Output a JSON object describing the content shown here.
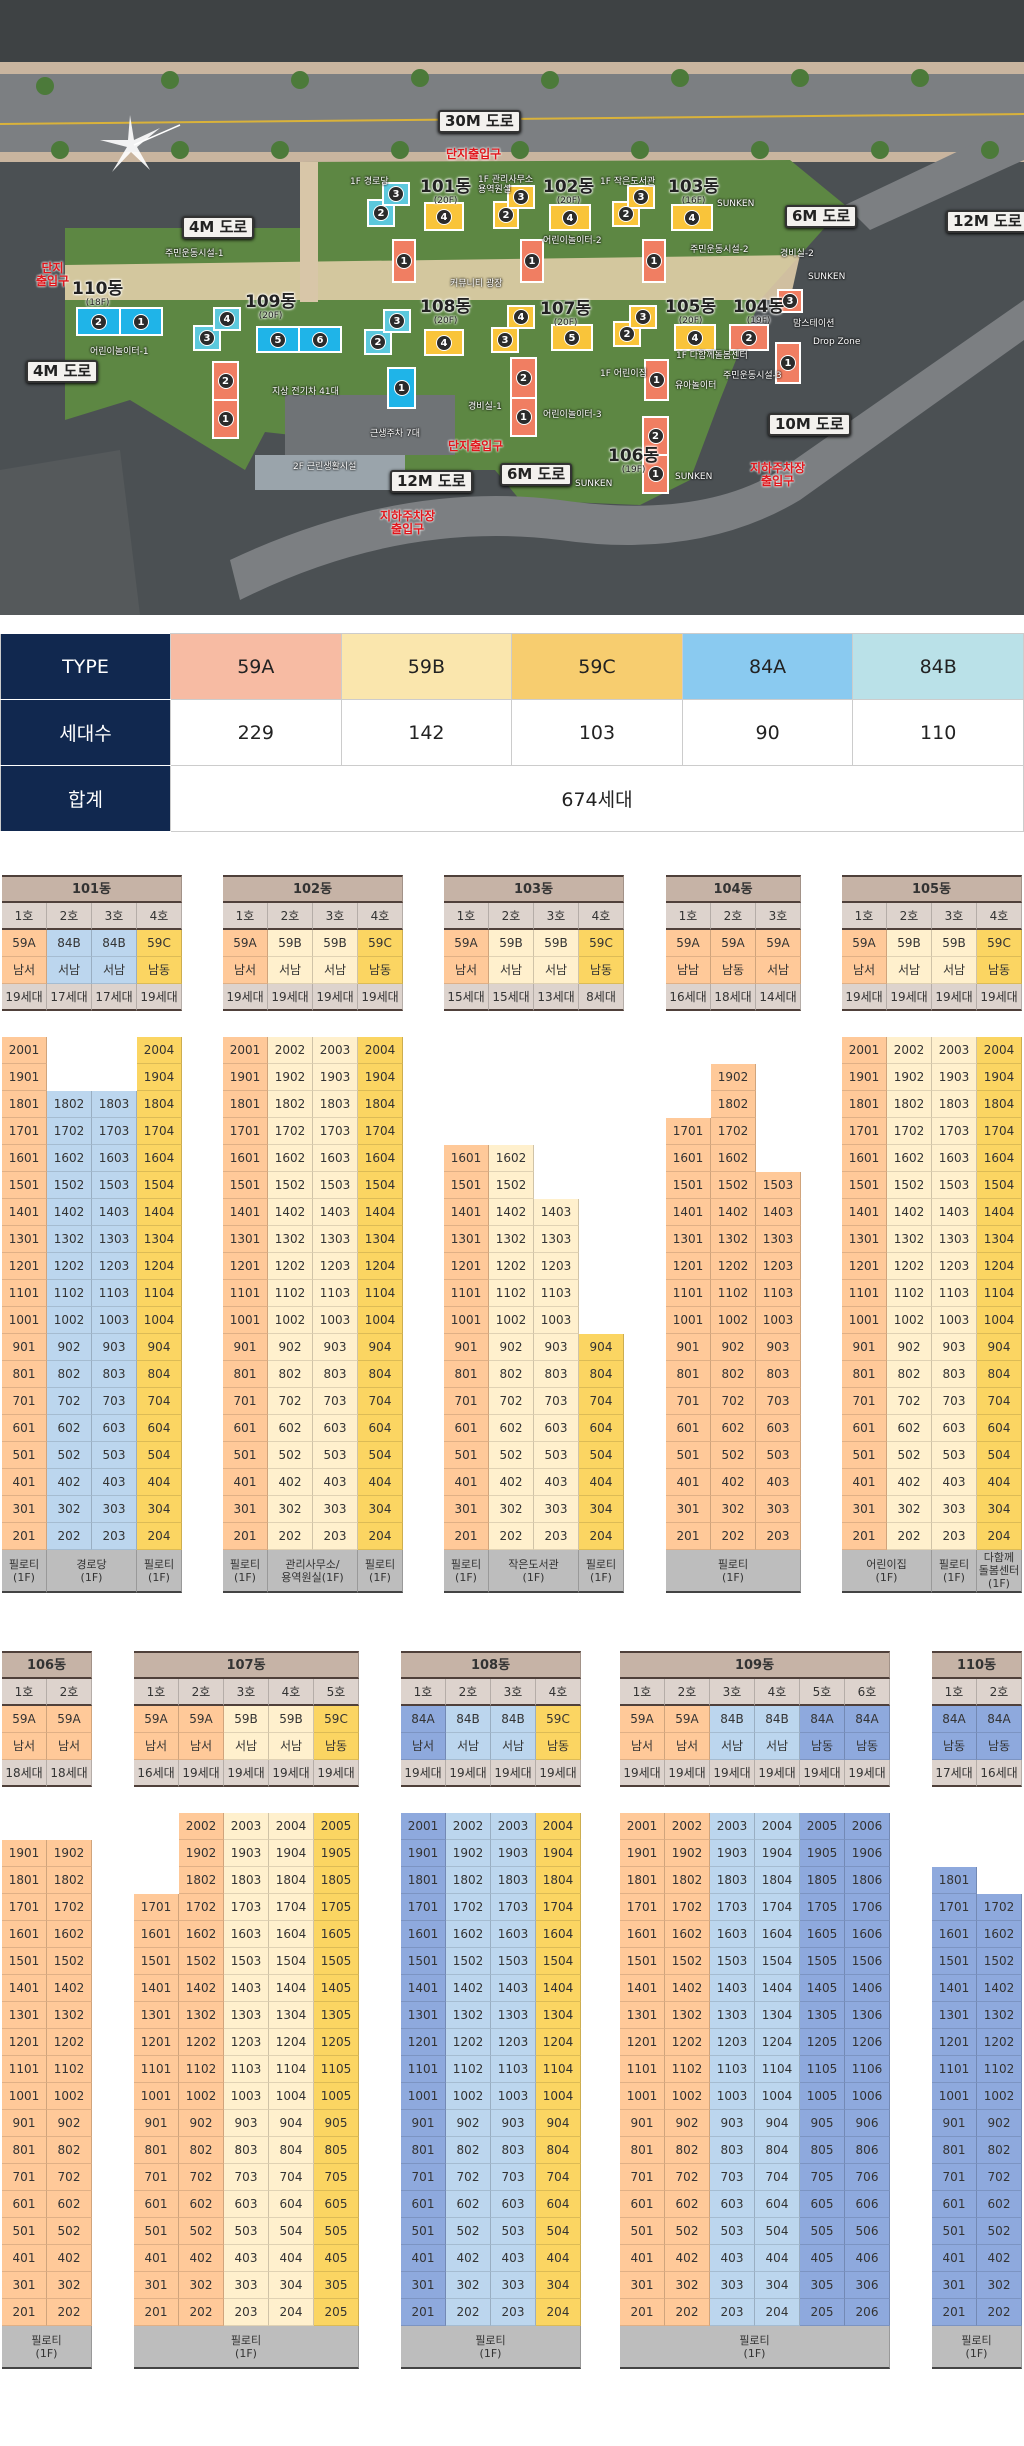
{
  "colors": {
    "59A": "#ffc999",
    "59B": "#fff0cd",
    "59C": "#fbd562",
    "84A": "#8ea9dd",
    "84B": "#bcd6ee",
    "navy": "#11284f"
  },
  "map_colors": {
    "59A": "#f07e62",
    "59B": "#f9c43a",
    "59C": "#f9c43a",
    "84A": "#1fb4e8",
    "84B": "#5cc8dc"
  },
  "map": {
    "roads": [
      "30M 도로",
      "4M 도로",
      "6M 도로",
      "12M 도로",
      "4M 도로",
      "10M 도로",
      "12M 도로",
      "6M 도로"
    ],
    "entrances": [
      "단지출입구",
      "단지\n출입구",
      "단지출입구",
      "지하주차장\n출입구",
      "지하주차장\n출입구"
    ],
    "buildings": [
      {
        "name": "101동",
        "floors": "(20F)",
        "units": [
          "1",
          "2",
          "3",
          "4"
        ],
        "types": [
          "59A",
          "84B",
          "84B",
          "59C"
        ]
      },
      {
        "name": "102동",
        "floors": "(20F)",
        "units": [
          "1",
          "2",
          "3",
          "4"
        ],
        "types": [
          "59A",
          "59B",
          "59B",
          "59C"
        ]
      },
      {
        "name": "103동",
        "floors": "(16F)",
        "units": [
          "1",
          "2",
          "3",
          "4"
        ],
        "types": [
          "59A",
          "59B",
          "59B",
          "59C"
        ]
      },
      {
        "name": "104동",
        "floors": "(19F)",
        "units": [
          "1",
          "2",
          "3"
        ],
        "types": [
          "59A",
          "59A",
          "59A"
        ]
      },
      {
        "name": "105동",
        "floors": "(20F)",
        "units": [
          "1",
          "2",
          "3",
          "4"
        ],
        "types": [
          "59A",
          "59B",
          "59B",
          "59C"
        ]
      },
      {
        "name": "106동",
        "floors": "(19F)",
        "units": [
          "1",
          "2"
        ],
        "types": [
          "59A",
          "59A"
        ]
      },
      {
        "name": "107동",
        "floors": "(20F)",
        "units": [
          "1",
          "2",
          "3",
          "4",
          "5"
        ],
        "types": [
          "59A",
          "59A",
          "59B",
          "59B",
          "59C"
        ]
      },
      {
        "name": "108동",
        "floors": "(20F)",
        "units": [
          "1",
          "2",
          "3",
          "4"
        ],
        "types": [
          "84A",
          "84B",
          "84B",
          "59C"
        ]
      },
      {
        "name": "109동",
        "floors": "(20F)",
        "units": [
          "1",
          "2",
          "3",
          "4",
          "5",
          "6"
        ],
        "types": [
          "59A",
          "59A",
          "84B",
          "84B",
          "84A",
          "84A"
        ]
      },
      {
        "name": "110동",
        "floors": "(18F)",
        "units": [
          "1",
          "2"
        ],
        "types": [
          "84A",
          "84A"
        ]
      }
    ],
    "facilities": [
      "1F 경로당",
      "1F 관리사무소\n용역원실",
      "주민운동시설-1",
      "커뮤니티 광장",
      "1F 작은도서관",
      "SUNKEN",
      "어린이놀이터-2",
      "주민운동시설-2",
      "경비실-2",
      "SUNKEN",
      "1F 다함께돌봄센터",
      "맘스테이션",
      "Drop Zone",
      "1F 어린이집",
      "유아놀이터",
      "주민운동시설-3",
      "어린이놀이터-3",
      "SUNKEN",
      "SUNKEN",
      "어린이놀이터-1",
      "지상 전기차 41대",
      "경비실-1",
      "근생주차 7대",
      "2F 근린생활시설"
    ]
  },
  "type_table": {
    "type_label": "TYPE",
    "count_label": "세대수",
    "total_label": "합계",
    "types": [
      "59A",
      "59B",
      "59C",
      "84A",
      "84B"
    ],
    "type_colors": [
      "#f7bba3",
      "#fae6ad",
      "#f7cd6f",
      "#8acaf0",
      "#bae1e8"
    ],
    "counts": [
      "229",
      "142",
      "103",
      "90",
      "110"
    ],
    "total": "674세대"
  },
  "buildings": [
    {
      "name": "101동",
      "units": [
        {
          "ho": "1호",
          "type": "59A",
          "dir": "남서",
          "count": "19세대",
          "from": 2,
          "to": 20
        },
        {
          "ho": "2호",
          "type": "84B",
          "dir": "서남",
          "count": "17세대",
          "from": 2,
          "to": 18
        },
        {
          "ho": "3호",
          "type": "84B",
          "dir": "서남",
          "count": "17세대",
          "from": 2,
          "to": 18
        },
        {
          "ho": "4호",
          "type": "59C",
          "dir": "남동",
          "count": "19세대",
          "from": 2,
          "to": 20
        }
      ],
      "piloti": [
        {
          "label": "필로티\n(1F)",
          "span": 1
        },
        {
          "label": "경로당\n(1F)",
          "span": 2
        },
        {
          "label": "필로티\n(1F)",
          "span": 1
        }
      ]
    },
    {
      "name": "102동",
      "units": [
        {
          "ho": "1호",
          "type": "59A",
          "dir": "남서",
          "count": "19세대",
          "from": 2,
          "to": 20
        },
        {
          "ho": "2호",
          "type": "59B",
          "dir": "서남",
          "count": "19세대",
          "from": 2,
          "to": 20
        },
        {
          "ho": "3호",
          "type": "59B",
          "dir": "서남",
          "count": "19세대",
          "from": 2,
          "to": 20
        },
        {
          "ho": "4호",
          "type": "59C",
          "dir": "남동",
          "count": "19세대",
          "from": 2,
          "to": 20
        }
      ],
      "piloti": [
        {
          "label": "필로티\n(1F)",
          "span": 1
        },
        {
          "label": "관리사무소/\n용역원실(1F)",
          "span": 2
        },
        {
          "label": "필로티\n(1F)",
          "span": 1
        }
      ]
    },
    {
      "name": "103동",
      "units": [
        {
          "ho": "1호",
          "type": "59A",
          "dir": "남서",
          "count": "15세대",
          "from": 2,
          "to": 16
        },
        {
          "ho": "2호",
          "type": "59B",
          "dir": "서남",
          "count": "15세대",
          "from": 2,
          "to": 16
        },
        {
          "ho": "3호",
          "type": "59B",
          "dir": "서남",
          "count": "13세대",
          "from": 2,
          "to": 14
        },
        {
          "ho": "4호",
          "type": "59C",
          "dir": "남동",
          "count": "8세대",
          "from": 2,
          "to": 9
        }
      ],
      "piloti": [
        {
          "label": "필로티\n(1F)",
          "span": 1
        },
        {
          "label": "작은도서관\n(1F)",
          "span": 2
        },
        {
          "label": "필로티\n(1F)",
          "span": 1
        }
      ]
    },
    {
      "name": "104동",
      "units": [
        {
          "ho": "1호",
          "type": "59A",
          "dir": "남남",
          "count": "16세대",
          "from": 2,
          "to": 17
        },
        {
          "ho": "2호",
          "type": "59A",
          "dir": "남동",
          "count": "18세대",
          "from": 2,
          "to": 19
        },
        {
          "ho": "3호",
          "type": "59A",
          "dir": "서남",
          "count": "14세대",
          "from": 2,
          "to": 15
        }
      ],
      "piloti": [
        {
          "label": "필로티\n(1F)",
          "span": 3
        }
      ]
    },
    {
      "name": "105동",
      "units": [
        {
          "ho": "1호",
          "type": "59A",
          "dir": "남서",
          "count": "19세대",
          "from": 2,
          "to": 20
        },
        {
          "ho": "2호",
          "type": "59B",
          "dir": "서남",
          "count": "19세대",
          "from": 2,
          "to": 20
        },
        {
          "ho": "3호",
          "type": "59B",
          "dir": "서남",
          "count": "19세대",
          "from": 2,
          "to": 20
        },
        {
          "ho": "4호",
          "type": "59C",
          "dir": "남동",
          "count": "19세대",
          "from": 2,
          "to": 20
        }
      ],
      "piloti": [
        {
          "label": "어린이집\n(1F)",
          "span": 2
        },
        {
          "label": "필로티\n(1F)",
          "span": 1
        },
        {
          "label": "다함께\n돌봄센터\n(1F)",
          "span": 1
        }
      ]
    },
    {
      "name": "106동",
      "units": [
        {
          "ho": "1호",
          "type": "59A",
          "dir": "남서",
          "count": "18세대",
          "from": 2,
          "to": 19
        },
        {
          "ho": "2호",
          "type": "59A",
          "dir": "남서",
          "count": "18세대",
          "from": 2,
          "to": 19
        }
      ],
      "piloti": [
        {
          "label": "필로티\n(1F)",
          "span": 2
        }
      ]
    },
    {
      "name": "107동",
      "units": [
        {
          "ho": "1호",
          "type": "59A",
          "dir": "남서",
          "count": "16세대",
          "from": 2,
          "to": 17
        },
        {
          "ho": "2호",
          "type": "59A",
          "dir": "남서",
          "count": "19세대",
          "from": 2,
          "to": 20
        },
        {
          "ho": "3호",
          "type": "59B",
          "dir": "서남",
          "count": "19세대",
          "from": 2,
          "to": 20
        },
        {
          "ho": "4호",
          "type": "59B",
          "dir": "서남",
          "count": "19세대",
          "from": 2,
          "to": 20
        },
        {
          "ho": "5호",
          "type": "59C",
          "dir": "남동",
          "count": "19세대",
          "from": 2,
          "to": 20
        }
      ],
      "piloti": [
        {
          "label": "필로티\n(1F)",
          "span": 5
        }
      ]
    },
    {
      "name": "108동",
      "units": [
        {
          "ho": "1호",
          "type": "84A",
          "dir": "남서",
          "count": "19세대",
          "from": 2,
          "to": 20
        },
        {
          "ho": "2호",
          "type": "84B",
          "dir": "서남",
          "count": "19세대",
          "from": 2,
          "to": 20
        },
        {
          "ho": "3호",
          "type": "84B",
          "dir": "서남",
          "count": "19세대",
          "from": 2,
          "to": 20
        },
        {
          "ho": "4호",
          "type": "59C",
          "dir": "남동",
          "count": "19세대",
          "from": 2,
          "to": 20
        }
      ],
      "piloti": [
        {
          "label": "필로티\n(1F)",
          "span": 4
        }
      ]
    },
    {
      "name": "109동",
      "units": [
        {
          "ho": "1호",
          "type": "59A",
          "dir": "남서",
          "count": "19세대",
          "from": 2,
          "to": 20
        },
        {
          "ho": "2호",
          "type": "59A",
          "dir": "남서",
          "count": "19세대",
          "from": 2,
          "to": 20
        },
        {
          "ho": "3호",
          "type": "84B",
          "dir": "서남",
          "count": "19세대",
          "from": 2,
          "to": 20
        },
        {
          "ho": "4호",
          "type": "84B",
          "dir": "서남",
          "count": "19세대",
          "from": 2,
          "to": 20
        },
        {
          "ho": "5호",
          "type": "84A",
          "dir": "남동",
          "count": "19세대",
          "from": 2,
          "to": 20
        },
        {
          "ho": "6호",
          "type": "84A",
          "dir": "남동",
          "count": "19세대",
          "from": 2,
          "to": 20
        }
      ],
      "piloti": [
        {
          "label": "필로티\n(1F)",
          "span": 6
        }
      ]
    },
    {
      "name": "110동",
      "units": [
        {
          "ho": "1호",
          "type": "84A",
          "dir": "남동",
          "count": "17세대",
          "from": 2,
          "to": 18
        },
        {
          "ho": "2호",
          "type": "84A",
          "dir": "남동",
          "count": "16세대",
          "from": 2,
          "to": 17
        }
      ],
      "piloti": [
        {
          "label": "필로티\n(1F)",
          "span": 2
        }
      ]
    }
  ]
}
